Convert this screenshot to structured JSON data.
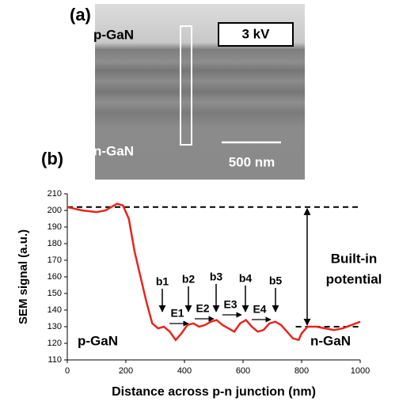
{
  "panel_a": {
    "label": "(a)",
    "top_layer": "p-GaN",
    "bottom_layer": "n-GaN",
    "voltage": "3 kV",
    "scale_bar": "500 nm"
  },
  "panel_b_label": "(b)",
  "chart_data": {
    "type": "line",
    "xlabel": "Distance across p-n junction (nm)",
    "ylabel": "SEM signal  (a.u.)",
    "x": [
      0,
      50,
      100,
      130,
      150,
      170,
      190,
      210,
      230,
      250,
      270,
      290,
      310,
      330,
      350,
      370,
      390,
      410,
      430,
      450,
      470,
      490,
      510,
      530,
      550,
      570,
      590,
      610,
      630,
      650,
      670,
      690,
      710,
      730,
      750,
      770,
      790,
      800,
      820,
      850,
      880,
      910,
      940,
      970,
      1000
    ],
    "series": [
      {
        "color": "#e8251b",
        "values": [
          202,
          200,
          199,
          200,
          202,
          204,
          203,
          195,
          175,
          160,
          145,
          132,
          129,
          130,
          127,
          122,
          126,
          131,
          132,
          130,
          131,
          133,
          134,
          131,
          129,
          127,
          132,
          134,
          130,
          127,
          128,
          132,
          133,
          131,
          127,
          123,
          122,
          126,
          130,
          130,
          129,
          128,
          129,
          131,
          133
        ]
      }
    ],
    "xlim": [
      0,
      1000
    ],
    "ylim": [
      110,
      210
    ],
    "xticks": [
      0,
      200,
      400,
      600,
      800,
      1000
    ],
    "yticks": [
      110,
      120,
      130,
      140,
      150,
      160,
      170,
      180,
      190,
      200,
      210
    ],
    "reference_lines": [
      {
        "y": 202,
        "x": [
          0,
          1000
        ]
      },
      {
        "y": 130,
        "x": [
          780,
          1000
        ]
      }
    ],
    "annotations": {
      "built_in": [
        "Built-in",
        "potential"
      ],
      "peaks": [
        "b1",
        "b2",
        "b3",
        "b4",
        "b5"
      ],
      "fields": [
        "E1",
        "E2",
        "E3",
        "E4"
      ],
      "left_region": "p-GaN",
      "right_region": "n-GaN"
    }
  }
}
